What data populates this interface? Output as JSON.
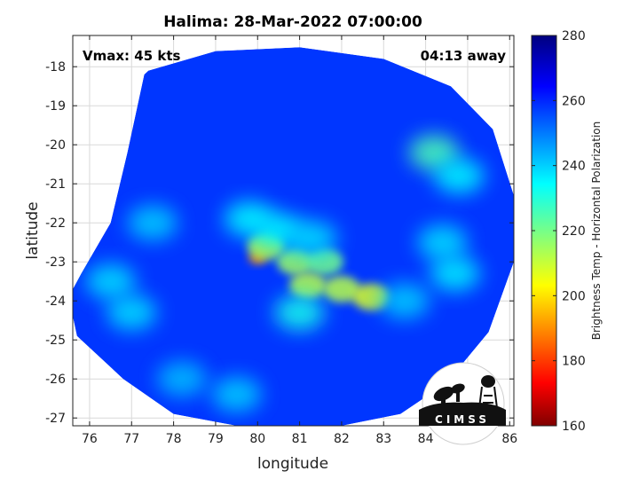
{
  "chart_data": {
    "type": "heatmap",
    "title": "Halima: 28-Mar-2022 07:00:00",
    "xlabel": "longitude",
    "ylabel": "latitude",
    "xlim": [
      75.6,
      86.1
    ],
    "ylim": [
      -27.2,
      -17.2
    ],
    "xticks": [
      76,
      77,
      78,
      79,
      80,
      81,
      82,
      83,
      84,
      85,
      86
    ],
    "yticks": [
      -18,
      -19,
      -20,
      -21,
      -22,
      -23,
      -24,
      -25,
      -26,
      -27
    ],
    "grid": true,
    "annotations": {
      "intensity": "Vmax: 45 kts",
      "time_offset": "04:13 away"
    },
    "colorbar": {
      "label": "Brightness Temp - Horizontal Polarization",
      "range": [
        160,
        280
      ],
      "ticks": [
        280,
        260,
        240,
        220,
        200,
        180,
        160
      ],
      "colormap": "jet"
    },
    "swath_boundary": [
      [
        77.4,
        -18.1
      ],
      [
        79.0,
        -17.6
      ],
      [
        81.0,
        -17.5
      ],
      [
        83.0,
        -17.8
      ],
      [
        84.6,
        -18.5
      ],
      [
        85.6,
        -19.6
      ],
      [
        86.1,
        -21.3
      ],
      [
        86.1,
        -23.0
      ],
      [
        85.5,
        -24.8
      ],
      [
        84.5,
        -26.1
      ],
      [
        83.4,
        -26.9
      ],
      [
        82.0,
        -27.2
      ],
      [
        79.5,
        -27.2
      ],
      [
        78.0,
        -26.9
      ],
      [
        76.8,
        -26.0
      ],
      [
        75.7,
        -24.9
      ],
      [
        75.5,
        -23.9
      ],
      [
        75.8,
        -23.3
      ],
      [
        76.5,
        -22.0
      ],
      [
        76.9,
        -20.2
      ],
      [
        77.3,
        -18.2
      ]
    ],
    "features": [
      {
        "lon": 80.0,
        "lat": -22.9,
        "tb": 190,
        "desc": "minimum"
      },
      {
        "lon": 80.2,
        "lat": -22.6,
        "tb": 210
      },
      {
        "lon": 80.9,
        "lat": -23.0,
        "tb": 215
      },
      {
        "lon": 81.6,
        "lat": -23.0,
        "tb": 220
      },
      {
        "lon": 81.2,
        "lat": -23.6,
        "tb": 212
      },
      {
        "lon": 82.0,
        "lat": -23.7,
        "tb": 212
      },
      {
        "lon": 82.7,
        "lat": -23.9,
        "tb": 208
      },
      {
        "lon": 81.0,
        "lat": -24.3,
        "tb": 232
      },
      {
        "lon": 79.8,
        "lat": -21.9,
        "tb": 235
      },
      {
        "lon": 80.5,
        "lat": -22.2,
        "tb": 235
      },
      {
        "lon": 81.3,
        "lat": -22.4,
        "tb": 238
      },
      {
        "lon": 77.0,
        "lat": -24.3,
        "tb": 238
      },
      {
        "lon": 76.5,
        "lat": -23.5,
        "tb": 238
      },
      {
        "lon": 77.5,
        "lat": -22.0,
        "tb": 240
      },
      {
        "lon": 84.2,
        "lat": -20.2,
        "tb": 225
      },
      {
        "lon": 84.8,
        "lat": -20.8,
        "tb": 235
      },
      {
        "lon": 84.4,
        "lat": -22.5,
        "tb": 238
      },
      {
        "lon": 84.7,
        "lat": -23.3,
        "tb": 236
      },
      {
        "lon": 83.5,
        "lat": -24.0,
        "tb": 240
      },
      {
        "lon": 79.5,
        "lat": -26.4,
        "tb": 240
      },
      {
        "lon": 78.2,
        "lat": -26.0,
        "tb": 242
      }
    ],
    "background_tb": 258
  },
  "logo": {
    "text": "CIMSS"
  },
  "colors": {
    "frame": "#222222",
    "grid": "#d9d9d9"
  }
}
